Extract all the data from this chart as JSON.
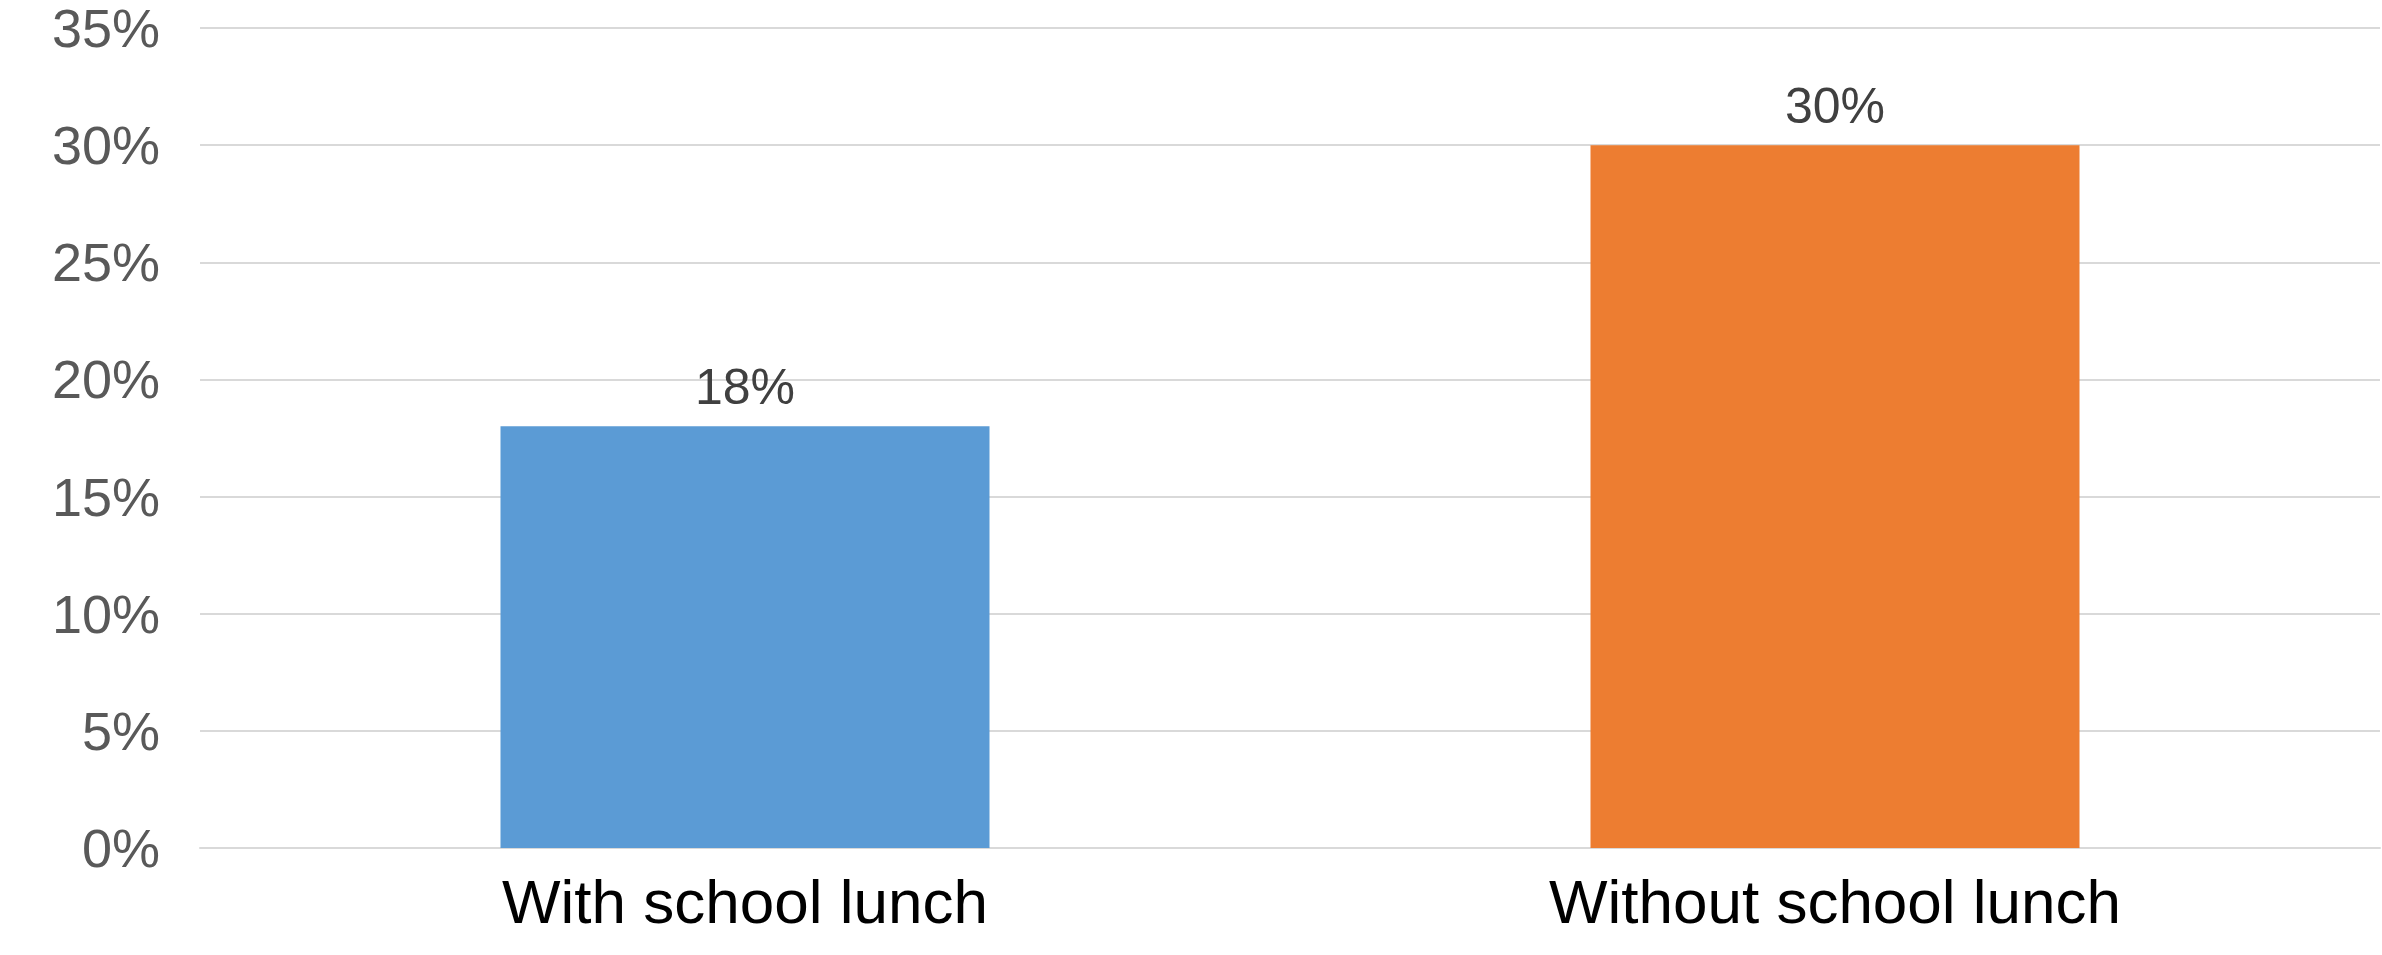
{
  "chart_data": {
    "type": "bar",
    "categories": [
      "With school lunch",
      "Without school lunch"
    ],
    "values": [
      18,
      30
    ],
    "colors": [
      "#5b9bd5",
      "#ed7d31"
    ],
    "value_labels": [
      "18%",
      "30%"
    ],
    "ylim": [
      0,
      35
    ],
    "yticks": [
      {
        "value": 0,
        "label": "0%"
      },
      {
        "value": 5,
        "label": "5%"
      },
      {
        "value": 10,
        "label": "10%"
      },
      {
        "value": 15,
        "label": "15%"
      },
      {
        "value": 20,
        "label": "20%"
      },
      {
        "value": 25,
        "label": "25%"
      },
      {
        "value": 30,
        "label": "30%"
      },
      {
        "value": 35,
        "label": "35%"
      }
    ],
    "grid": "y"
  }
}
